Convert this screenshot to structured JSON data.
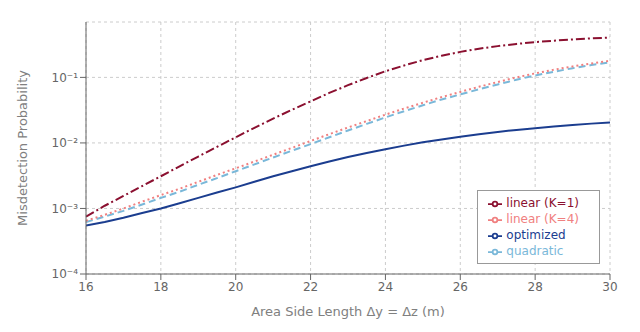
{
  "chart_data": {
    "type": "line",
    "xlabel": "Area Side Length Δy = Δz (m)",
    "ylabel": "Misdetection Probability",
    "log": "y",
    "grid": true,
    "legend": "lower right",
    "xlim": [
      16,
      30
    ],
    "xticks": [
      16,
      18,
      20,
      22,
      24,
      26,
      28,
      30
    ],
    "ylim": [
      0.0001,
      0.7
    ],
    "yticks": [
      {
        "value": 0.0001,
        "label": "10⁻⁴"
      },
      {
        "value": 0.001,
        "label": "10⁻³"
      },
      {
        "value": 0.01,
        "label": "10⁻²"
      },
      {
        "value": 0.1,
        "label": "10⁻¹"
      }
    ],
    "x": [
      16,
      16.5,
      17,
      17.5,
      18,
      18.5,
      19,
      19.5,
      20,
      20.5,
      21,
      21.5,
      22,
      22.5,
      23,
      23.5,
      24,
      24.5,
      25,
      25.5,
      26,
      26.5,
      27,
      27.5,
      28,
      28.5,
      29,
      29.5,
      30
    ],
    "series": [
      {
        "name": "optimized",
        "color": "#1b3d8f",
        "line_style": "solid",
        "values": [
          0.00055,
          0.00062,
          0.00072,
          0.00085,
          0.001,
          0.0012,
          0.00145,
          0.00175,
          0.0021,
          0.00255,
          0.0031,
          0.0037,
          0.0044,
          0.0052,
          0.0061,
          0.007,
          0.008,
          0.0091,
          0.0102,
          0.0113,
          0.0124,
          0.0136,
          0.0147,
          0.0158,
          0.0168,
          0.0178,
          0.0188,
          0.0197,
          0.0205
        ]
      },
      {
        "name": "quadratic",
        "color": "#7ab8d9",
        "line_style": "dashed",
        "values": [
          0.00062,
          0.00075,
          0.00092,
          0.00115,
          0.00145,
          0.0018,
          0.0023,
          0.0029,
          0.0037,
          0.0047,
          0.006,
          0.0076,
          0.0096,
          0.0122,
          0.0155,
          0.0195,
          0.0245,
          0.0305,
          0.0375,
          0.046,
          0.055,
          0.066,
          0.078,
          0.092,
          0.107,
          0.122,
          0.138,
          0.154,
          0.17
        ]
      },
      {
        "name": "linear (K=4)",
        "color": "#f08080",
        "line_style": "dotted",
        "values": [
          0.00065,
          0.0008,
          0.001,
          0.00127,
          0.0016,
          0.002,
          0.00255,
          0.00325,
          0.0041,
          0.0052,
          0.0066,
          0.0084,
          0.0107,
          0.0136,
          0.0172,
          0.0215,
          0.027,
          0.0335,
          0.041,
          0.05,
          0.06,
          0.072,
          0.085,
          0.1,
          0.115,
          0.131,
          0.147,
          0.163,
          0.179
        ]
      },
      {
        "name": "linear (K=1)",
        "color": "#8b1030",
        "line_style": "dashdot",
        "values": [
          0.00075,
          0.0011,
          0.00155,
          0.0022,
          0.0031,
          0.0044,
          0.0062,
          0.0087,
          0.0122,
          0.017,
          0.0235,
          0.032,
          0.043,
          0.058,
          0.076,
          0.098,
          0.124,
          0.152,
          0.183,
          0.214,
          0.245,
          0.274,
          0.3,
          0.324,
          0.345,
          0.363,
          0.379,
          0.393,
          0.405
        ]
      }
    ]
  }
}
